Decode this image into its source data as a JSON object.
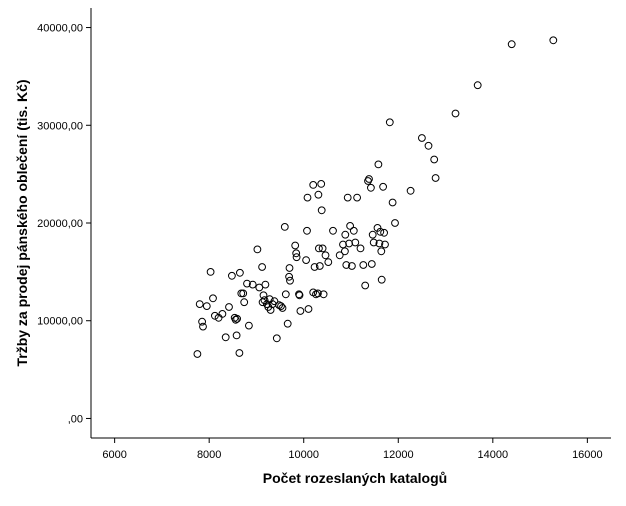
{
  "chart_data": {
    "type": "scatter",
    "title": "",
    "xlabel": "Počet rozeslaných katalogů",
    "ylabel": "Tržby za prodej pánského oblečení (tis. Kč)",
    "xlim": [
      5500,
      16500
    ],
    "ylim": [
      -2000,
      42000
    ],
    "xticks": [
      6000,
      8000,
      10000,
      12000,
      14000,
      16000
    ],
    "xtick_labels": [
      "6000",
      "8000",
      "10000",
      "12000",
      "14000",
      "16000"
    ],
    "yticks": [
      0,
      10000,
      20000,
      30000,
      40000
    ],
    "ytick_labels": [
      ",00",
      "10000,00",
      "20000,00",
      "30000,00",
      "40000,00"
    ],
    "grid": false,
    "marker": "hollow-circle",
    "colors": {
      "background": "#ffffff",
      "plot_area": "#ffffff",
      "marker_stroke": "#000000",
      "axis": "#000000"
    },
    "points": [
      [
        7750,
        6600
      ],
      [
        7800,
        11700
      ],
      [
        7850,
        9900
      ],
      [
        7870,
        9400
      ],
      [
        7950,
        11500
      ],
      [
        8030,
        15000
      ],
      [
        8080,
        12300
      ],
      [
        8120,
        10500
      ],
      [
        8200,
        10300
      ],
      [
        8280,
        10700
      ],
      [
        8350,
        8300
      ],
      [
        8420,
        11400
      ],
      [
        8480,
        14600
      ],
      [
        8540,
        10300
      ],
      [
        8560,
        10100
      ],
      [
        8580,
        8500
      ],
      [
        8590,
        10200
      ],
      [
        8640,
        6700
      ],
      [
        8650,
        14900
      ],
      [
        8680,
        12800
      ],
      [
        8720,
        12800
      ],
      [
        8740,
        11900
      ],
      [
        8800,
        13800
      ],
      [
        8840,
        9500
      ],
      [
        8920,
        13700
      ],
      [
        9020,
        17300
      ],
      [
        9060,
        13400
      ],
      [
        9120,
        15500
      ],
      [
        9130,
        11900
      ],
      [
        9150,
        12600
      ],
      [
        9170,
        12100
      ],
      [
        9190,
        13700
      ],
      [
        9220,
        11700
      ],
      [
        9250,
        11400
      ],
      [
        9280,
        12200
      ],
      [
        9300,
        11100
      ],
      [
        9340,
        11700
      ],
      [
        9380,
        12000
      ],
      [
        9430,
        8200
      ],
      [
        9480,
        11600
      ],
      [
        9520,
        11500
      ],
      [
        9550,
        11300
      ],
      [
        9600,
        19600
      ],
      [
        9620,
        12700
      ],
      [
        9660,
        9700
      ],
      [
        9690,
        14500
      ],
      [
        9700,
        15400
      ],
      [
        9710,
        14100
      ],
      [
        9820,
        17700
      ],
      [
        9840,
        16900
      ],
      [
        9850,
        16500
      ],
      [
        9900,
        12700
      ],
      [
        9910,
        12600
      ],
      [
        9930,
        11000
      ],
      [
        10050,
        16200
      ],
      [
        10070,
        19200
      ],
      [
        10080,
        22600
      ],
      [
        10100,
        11200
      ],
      [
        10200,
        23900
      ],
      [
        10200,
        12900
      ],
      [
        10230,
        15500
      ],
      [
        10260,
        12700
      ],
      [
        10300,
        12800
      ],
      [
        10310,
        22900
      ],
      [
        10320,
        17400
      ],
      [
        10340,
        15600
      ],
      [
        10370,
        24000
      ],
      [
        10380,
        21300
      ],
      [
        10400,
        17400
      ],
      [
        10420,
        12700
      ],
      [
        10460,
        16700
      ],
      [
        10520,
        16000
      ],
      [
        10620,
        19200
      ],
      [
        10760,
        16700
      ],
      [
        10830,
        17800
      ],
      [
        10870,
        17100
      ],
      [
        10880,
        18800
      ],
      [
        10900,
        15700
      ],
      [
        10930,
        22600
      ],
      [
        10960,
        17900
      ],
      [
        10980,
        19700
      ],
      [
        11020,
        15600
      ],
      [
        11060,
        19200
      ],
      [
        11090,
        18000
      ],
      [
        11130,
        22600
      ],
      [
        11200,
        17400
      ],
      [
        11260,
        15700
      ],
      [
        11300,
        13600
      ],
      [
        11360,
        24300
      ],
      [
        11380,
        24500
      ],
      [
        11420,
        23600
      ],
      [
        11440,
        15800
      ],
      [
        11460,
        18800
      ],
      [
        11480,
        18000
      ],
      [
        11560,
        19500
      ],
      [
        11580,
        26000
      ],
      [
        11600,
        17900
      ],
      [
        11620,
        19100
      ],
      [
        11640,
        17100
      ],
      [
        11650,
        14200
      ],
      [
        11680,
        23700
      ],
      [
        11700,
        19000
      ],
      [
        11720,
        17800
      ],
      [
        11820,
        30300
      ],
      [
        11880,
        22100
      ],
      [
        11930,
        20000
      ],
      [
        12260,
        23300
      ],
      [
        12500,
        28700
      ],
      [
        12640,
        27900
      ],
      [
        12760,
        26500
      ],
      [
        12790,
        24600
      ],
      [
        13210,
        31200
      ],
      [
        13680,
        34100
      ],
      [
        14400,
        38300
      ],
      [
        15280,
        38700
      ]
    ]
  }
}
